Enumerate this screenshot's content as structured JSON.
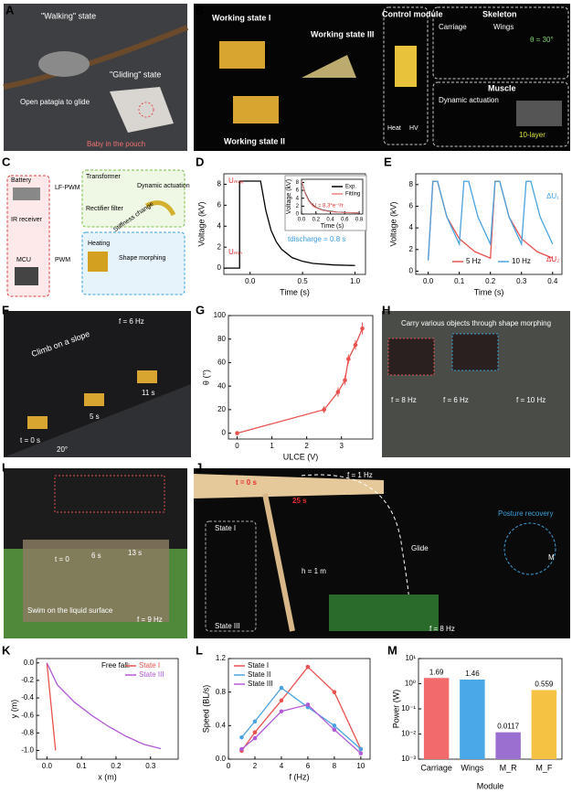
{
  "panels": {
    "A": {
      "letter": "A",
      "walking": "\"Walking\" state",
      "gliding": "\"Gliding\" state",
      "open": "Open patagia to glide",
      "baby": "Baby in the pouch"
    },
    "B": {
      "letter": "B",
      "ws1": "Working state I",
      "ws3": "Working state III",
      "ws2": "Working state II",
      "control": "Control module",
      "skeleton": "Skeleton",
      "carriage": "Carriage",
      "wings": "Wings",
      "theta": "θ = 30°",
      "muscle": "Muscle",
      "dynamic": "Dynamic actuation",
      "layer": "10-layer",
      "heat": "Heat",
      "hv": "HV"
    },
    "C": {
      "letter": "C",
      "battery": "Battery",
      "ir": "IR receiver",
      "mcu": "MCU",
      "lfpwm": "LF-PWM",
      "pwm": "PWM",
      "transformer": "Transformer",
      "rectifier": "Rectifier filter",
      "dynamic": "Dynamic actuation",
      "stiffness": "Stiffness change",
      "heating": "Heating",
      "shape": "Shape morphing"
    },
    "F": {
      "letter": "F",
      "climb": "Climb on a slope",
      "freq": "f = 6 Hz",
      "t0": "t = 0 s",
      "t5": "5 s",
      "t11": "11 s",
      "angle": "20°"
    },
    "H": {
      "letter": "H",
      "carry": "Carry various objects through shape morphing",
      "f8": "f = 8 Hz",
      "f6": "f = 6 Hz",
      "f10": "f = 10 Hz"
    },
    "I": {
      "letter": "I",
      "t0": "t = 0",
      "t6": "6 s",
      "t13": "13 s",
      "swim": "Swim on the liquid surface",
      "freq": "f = 9 Hz"
    },
    "J": {
      "letter": "J",
      "t0": "t = 0 s",
      "t25": "25 s",
      "f1": "f = 1 Hz",
      "posture": "Posture recovery",
      "m": "M",
      "s1": "State I",
      "s3": "State III",
      "glide": "Glide",
      "h": "h = 1 m",
      "f8": "f = 8 Hz"
    }
  },
  "chart_data": [
    {
      "type": "line",
      "panel": "D",
      "xlabel": "Time (s)",
      "ylabel": "Voltage (kV)",
      "xlim": [
        -0.25,
        1.1
      ],
      "ylim": [
        -0.6,
        9
      ],
      "xticks": [
        {
          "value": 0,
          "label": "0.0"
        },
        0.5,
        {
          "value": 1,
          "label": "1.0"
        }
      ],
      "yticks": [
        0,
        2,
        4,
        6,
        8
      ],
      "x": [
        -0.25,
        -0.1,
        -0.1,
        0.1,
        0.15,
        0.2,
        0.25,
        0.3,
        0.4,
        0.5,
        0.6,
        0.8,
        1.0
      ],
      "series": [
        {
          "color": "#000000",
          "values": [
            0,
            0,
            8.3,
            8.3,
            5.5,
            3.6,
            2.5,
            1.8,
            1.0,
            0.65,
            0.45,
            0.3,
            0.25
          ]
        }
      ],
      "annotations": [
        "Uₘₐₓ",
        "Uₘᵢₙ",
        "tdischarge = 0.8 s"
      ]
    },
    {
      "type": "line",
      "panel": "",
      "xlabel": "Time (s)",
      "ylabel": "Voltage (kV)",
      "xlim": [
        0,
        0.85
      ],
      "ylim": [
        0,
        8.8
      ],
      "xticks": [
        {
          "value": 0,
          "label": "0.0"
        },
        0.2,
        0.4,
        0.6,
        0.8
      ],
      "yticks": [
        0,
        2,
        4,
        6,
        8
      ],
      "legend": "upper right",
      "x": [
        0,
        0.05,
        0.1,
        0.15,
        0.2,
        0.3,
        0.4,
        0.5,
        0.6,
        0.7,
        0.8
      ],
      "series": [
        {
          "name": "Exp.",
          "color": "#000000",
          "values": [
            8.3,
            5.4,
            3.5,
            2.4,
            1.7,
            1.0,
            0.7,
            0.5,
            0.4,
            0.35,
            0.3
          ]
        },
        {
          "name": "Fitting",
          "color": "#f08080",
          "values": [
            8.3,
            5.2,
            3.3,
            2.2,
            1.6,
            0.9,
            0.6,
            0.45,
            0.38,
            0.33,
            0.3
          ]
        }
      ],
      "annotations": [
        "U = 8.3*e⁻ᵗ/τ"
      ]
    },
    {
      "type": "line",
      "panel": "E",
      "xlabel": "Time (s)",
      "ylabel": "Voltage (kV)",
      "xlim": [
        -0.04,
        0.43
      ],
      "ylim": [
        -0.3,
        9
      ],
      "xticks": [
        {
          "value": 0,
          "label": "0.0"
        },
        0.1,
        0.2,
        0.3,
        0.4
      ],
      "yticks": [
        0,
        2,
        4,
        6,
        8
      ],
      "legend": "lower center",
      "series": [
        {
          "name": "5 Hz",
          "color": "#e8524f",
          "x": [
            0,
            0.015,
            0.03,
            0.06,
            0.1,
            0.15,
            0.2,
            0.215,
            0.23,
            0.26,
            0.3,
            0.35,
            0.4
          ],
          "values": [
            1.0,
            8.3,
            8.3,
            5.0,
            3.0,
            1.8,
            1.2,
            8.3,
            8.3,
            5.0,
            3.0,
            1.8,
            1.2
          ]
        },
        {
          "name": "10 Hz",
          "color": "#4aa3e0",
          "x": [
            0,
            0.015,
            0.03,
            0.06,
            0.1,
            0.115,
            0.13,
            0.16,
            0.2,
            0.215,
            0.23,
            0.26,
            0.3,
            0.315,
            0.33,
            0.36,
            0.4
          ],
          "values": [
            1.0,
            8.3,
            8.3,
            5.0,
            2.5,
            8.3,
            8.3,
            5.0,
            2.5,
            8.3,
            8.3,
            5.0,
            2.5,
            8.3,
            8.3,
            5.0,
            2.5
          ]
        }
      ],
      "annotations": [
        "ΔU₁",
        "ΔU₂"
      ]
    },
    {
      "type": "line",
      "panel": "G",
      "xlabel": "ULCE (V)",
      "ylabel": "θ (°)",
      "markers": true,
      "xlim": [
        -0.25,
        3.9
      ],
      "ylim": [
        -5,
        100
      ],
      "xticks": [
        0,
        1,
        2,
        3
      ],
      "yticks": [
        0,
        20,
        40,
        60,
        80,
        100
      ],
      "x": [
        0,
        2.5,
        2.9,
        3.1,
        3.2,
        3.4,
        3.6
      ],
      "series": [
        {
          "color": "#e8524f",
          "values": [
            0,
            20,
            35,
            45,
            63,
            75,
            89
          ],
          "errors": [
            0,
            3,
            4,
            4,
            4,
            4,
            5
          ]
        }
      ]
    },
    {
      "type": "line",
      "panel": "K",
      "xlabel": "x (m)",
      "ylabel": "y (m)",
      "legend": "upper right",
      "legend_title": "Free fall:",
      "xlim": [
        -0.03,
        0.38
      ],
      "ylim": [
        -1.1,
        0.05
      ],
      "xticks": [
        {
          "value": 0,
          "label": "0.0"
        },
        0.1,
        0.2,
        0.3
      ],
      "yticks": [
        {
          "value": 0,
          "label": "0.0"
        },
        -0.2,
        -0.4,
        -0.6,
        -0.8,
        {
          "value": -1,
          "label": "-1.0"
        }
      ],
      "series": [
        {
          "name": "State I",
          "color": "#e8524f",
          "x": [
            0,
            0.005,
            0.01,
            0.015,
            0.02,
            0.025
          ],
          "values": [
            0,
            -0.2,
            -0.4,
            -0.6,
            -0.8,
            -1.0
          ]
        },
        {
          "name": "State III",
          "color": "#b25bd6",
          "x": [
            0,
            0.03,
            0.08,
            0.13,
            0.18,
            0.23,
            0.28,
            0.33
          ],
          "values": [
            0,
            -0.25,
            -0.45,
            -0.6,
            -0.73,
            -0.84,
            -0.93,
            -0.98
          ]
        }
      ]
    },
    {
      "type": "line",
      "panel": "L",
      "xlabel": "f (Hz)",
      "ylabel": "Speed (BL/s)",
      "legend": "upper left",
      "markers": true,
      "xlim": [
        0,
        10.7
      ],
      "ylim": [
        0,
        1.2
      ],
      "xticks": [
        0,
        2,
        4,
        6,
        8,
        10
      ],
      "yticks": [
        {
          "value": 0,
          "label": "0.0"
        },
        0.4,
        0.8,
        1.2
      ],
      "x": [
        1,
        2,
        4,
        6,
        8,
        10
      ],
      "series": [
        {
          "name": "State I",
          "color": "#e8524f",
          "values": [
            0.1,
            0.32,
            0.7,
            1.1,
            0.8,
            0.12
          ]
        },
        {
          "name": "State II",
          "color": "#4aa3e0",
          "values": [
            0.26,
            0.45,
            0.85,
            0.62,
            0.4,
            0.12
          ]
        },
        {
          "name": "State III",
          "color": "#b25bd6",
          "values": [
            0.12,
            0.25,
            0.57,
            0.65,
            0.35,
            0.07
          ]
        }
      ]
    },
    {
      "type": "bar",
      "panel": "M",
      "xlabel": "Module",
      "ylabel": "Power (W)",
      "log_y": true,
      "ylim": [
        0.001,
        10
      ],
      "yticks": [
        {
          "value": 0.001,
          "label": "10⁻³"
        },
        {
          "value": 0.01,
          "label": "10⁻²"
        },
        {
          "value": 0.1,
          "label": "10⁻¹"
        },
        {
          "value": 1,
          "label": "10⁰"
        },
        {
          "value": 10,
          "label": "10¹"
        }
      ],
      "categories": [
        "Carriage",
        "Wings",
        "M_R",
        "M_F"
      ],
      "values": [
        1.69,
        1.46,
        0.0117,
        0.559
      ],
      "colors": [
        "#f26b6b",
        "#4aa8e8",
        "#9b6fcf",
        "#f6c244"
      ]
    }
  ]
}
